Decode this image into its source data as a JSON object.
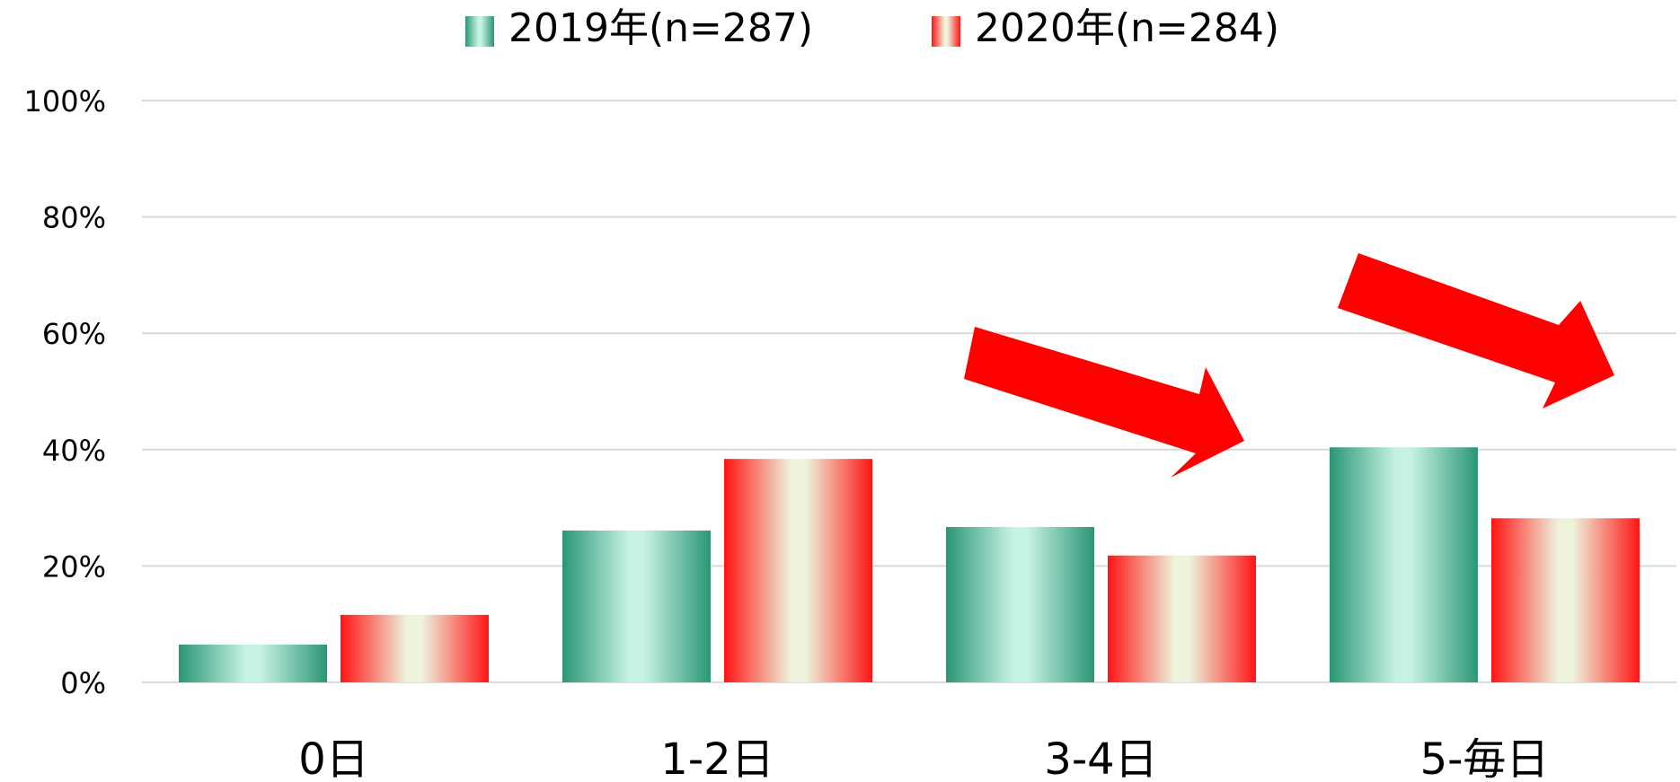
{
  "chart_data": {
    "type": "bar",
    "categories": [
      "0日",
      "1-2日",
      "3-4日",
      "5-毎日"
    ],
    "series": [
      {
        "name": "2019年(n=287)",
        "values": [
          6.5,
          26.1,
          26.7,
          40.4
        ]
      },
      {
        "name": "2020年(n=284)",
        "values": [
          11.6,
          38.4,
          21.8,
          28.2
        ]
      }
    ],
    "ylim": [
      0,
      100
    ],
    "yticks": [
      "0%",
      "20%",
      "40%",
      "60%",
      "80%",
      "100%"
    ],
    "yticks_values": [
      0,
      20,
      40,
      60,
      80,
      100
    ],
    "grid": true,
    "legend_position": "top-center",
    "series_colors": [
      "#2e9a78",
      "#ff1a1a"
    ],
    "annotations": [
      {
        "type": "arrow",
        "color": "#ff0000",
        "category": "3-4日",
        "direction": "down-right"
      },
      {
        "type": "arrow",
        "color": "#ff0000",
        "category": "5-毎日",
        "direction": "down-right"
      }
    ]
  }
}
